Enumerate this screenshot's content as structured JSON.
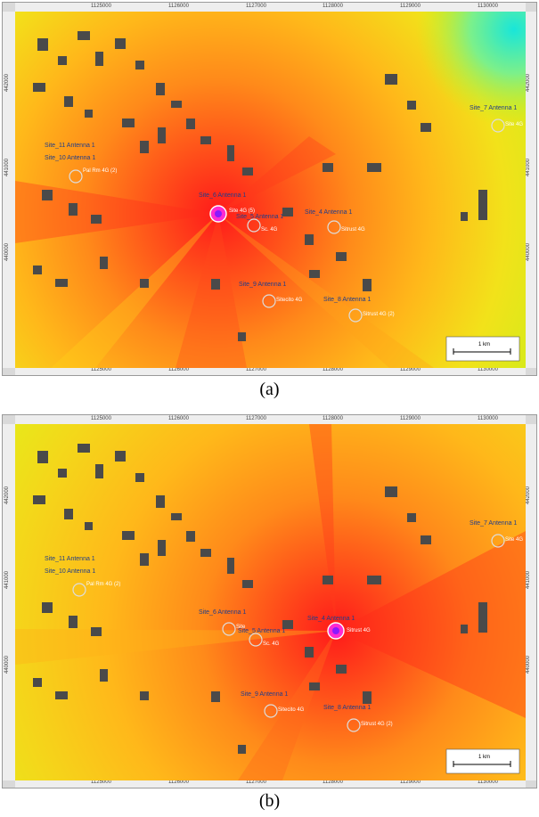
{
  "figure": {
    "panels": [
      {
        "caption": "(a)",
        "active_site": "Site_6 Antenna 1",
        "x_ticks": [
          "1125000",
          "1126000",
          "1127000",
          "1128000",
          "1129000",
          "1130000"
        ],
        "y_ticks": [
          "442000",
          "441000",
          "440000"
        ],
        "sites": [
          {
            "label": "Site_11 Antenna 1",
            "station": ""
          },
          {
            "label": "Site_10 Antenna 1",
            "station": "Pal Rm 4G (2)"
          },
          {
            "label": "Site_6 Antenna 1",
            "station": "Site 4G (5)"
          },
          {
            "label": "Site_5 Antenna 1",
            "station": "Sc. 4G"
          },
          {
            "label": "Site_4 Antenna 1",
            "station": "Sitrust 4G"
          },
          {
            "label": "Site_9 Antenna 1",
            "station": "Sitecito 4G"
          },
          {
            "label": "Site_8 Antenna 1",
            "station": "Sitrust 4G (2)"
          },
          {
            "label": "Site_7 Antenna 1",
            "station": "Site 4G"
          }
        ],
        "scale_bar": "1 km"
      },
      {
        "caption": "(b)",
        "active_site": "Site_4 Antenna 1",
        "x_ticks": [
          "1125000",
          "1126000",
          "1127000",
          "1128000",
          "1129000",
          "1130000"
        ],
        "y_ticks": [
          "442000",
          "441000",
          "440000"
        ],
        "sites": [
          {
            "label": "Site_11 Antenna 1",
            "station": ""
          },
          {
            "label": "Site_10 Antenna 1",
            "station": "Pal Rm 4G (2)"
          },
          {
            "label": "Site_6 Antenna 1",
            "station": "Site"
          },
          {
            "label": "Site_5 Antenna 1",
            "station": "Sc. 4G"
          },
          {
            "label": "Site_4 Antenna 1",
            "station": "Sitrust 4G"
          },
          {
            "label": "Site_9 Antenna 1",
            "station": "Sitecito 4G"
          },
          {
            "label": "Site_8 Antenna 1",
            "station": "Sitrust 4G (2)"
          },
          {
            "label": "Site_7 Antenna 1",
            "station": "Site 4G"
          }
        ],
        "scale_bar": "1 km"
      }
    ]
  }
}
